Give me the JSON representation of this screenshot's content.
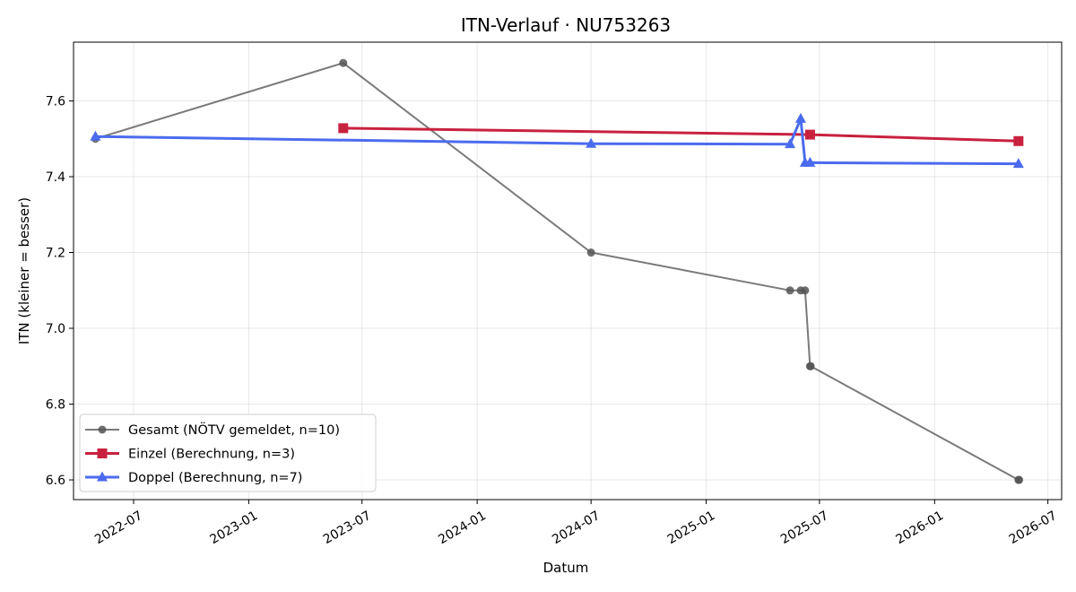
{
  "chart_data": {
    "type": "line",
    "title": "ITN-Verlauf · NU753263",
    "xlabel": "Datum",
    "ylabel": "ITN  (kleiner = besser)",
    "x_type": "date",
    "xlim": [
      "2022-03-27",
      "2026-07-23"
    ],
    "ylim": [
      6.548,
      7.755
    ],
    "x_ticks": [
      "2022-07",
      "2023-01",
      "2023-07",
      "2024-01",
      "2024-07",
      "2025-01",
      "2025-07",
      "2026-01",
      "2026-07"
    ],
    "y_ticks": [
      "6.6",
      "6.8",
      "7.0",
      "7.2",
      "7.4",
      "7.6"
    ],
    "grid": true,
    "legend_position": "lower-left",
    "series": [
      {
        "name": "Gesamt (NÖTV gemeldet, n=10)",
        "color": "#555555",
        "marker": "circle",
        "points": [
          {
            "x": "2022-05-01",
            "y": 7.5
          },
          {
            "x": "2023-06-01",
            "y": 7.7
          },
          {
            "x": "2024-07-01",
            "y": 7.2
          },
          {
            "x": "2025-05-15",
            "y": 7.1
          },
          {
            "x": "2025-06-01",
            "y": 7.1
          },
          {
            "x": "2025-06-08",
            "y": 7.1
          },
          {
            "x": "2025-06-16",
            "y": 6.9
          },
          {
            "x": "2025-06-17",
            "y": 6.9
          },
          {
            "x": "2026-05-15",
            "y": 6.6
          },
          {
            "x": "2026-05-16",
            "y": 6.6
          }
        ]
      },
      {
        "name": "Einzel (Berechnung, n=3)",
        "color": "#c8213f",
        "marker": "square",
        "points": [
          {
            "x": "2023-06-01",
            "y": 7.528
          },
          {
            "x": "2025-06-16",
            "y": 7.511
          },
          {
            "x": "2026-05-15",
            "y": 7.494
          }
        ]
      },
      {
        "name": "Doppel (Berechnung, n=7)",
        "color": "#4b6bee",
        "marker": "triangle",
        "points": [
          {
            "x": "2022-05-01",
            "y": 7.506
          },
          {
            "x": "2024-07-01",
            "y": 7.487
          },
          {
            "x": "2025-05-15",
            "y": 7.486
          },
          {
            "x": "2025-06-01",
            "y": 7.553
          },
          {
            "x": "2025-06-08",
            "y": 7.437
          },
          {
            "x": "2025-06-16",
            "y": 7.437
          },
          {
            "x": "2026-05-15",
            "y": 7.434
          }
        ]
      }
    ]
  }
}
